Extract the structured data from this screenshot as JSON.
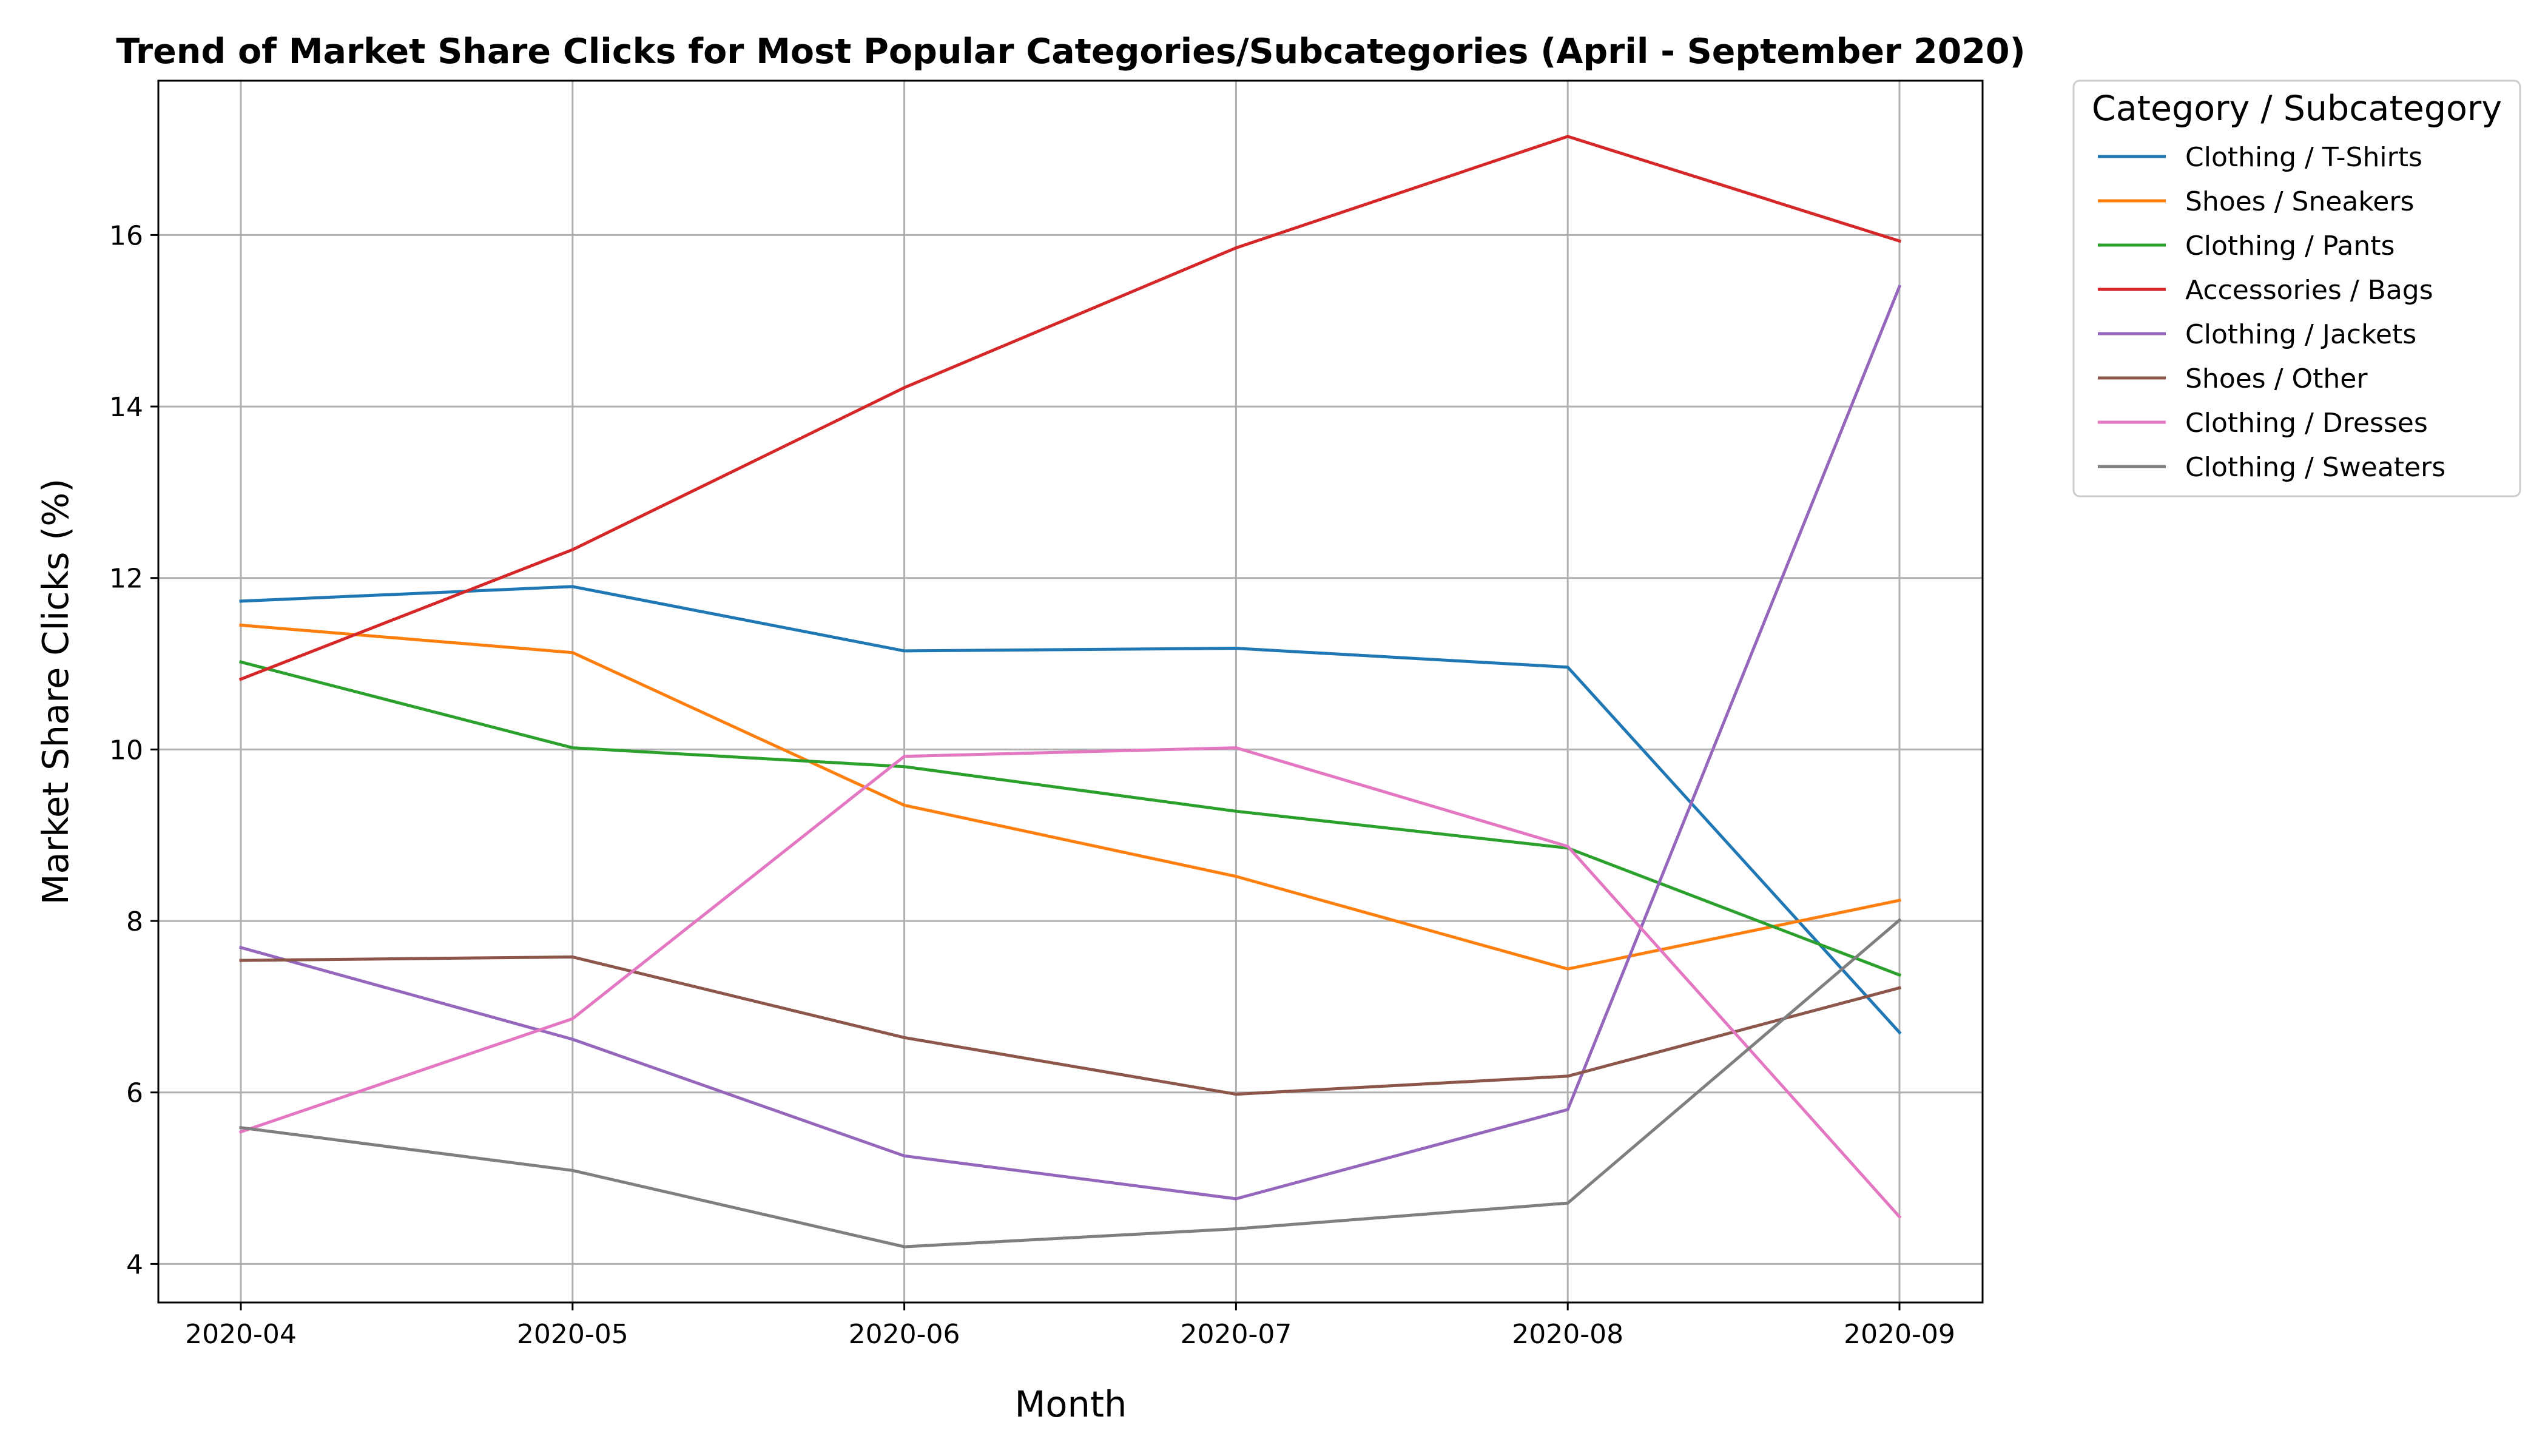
{
  "chart_data": {
    "type": "line",
    "title": "Trend of Market Share Clicks for Most Popular Categories/Subcategories (April - September 2020)",
    "xlabel": "Month",
    "ylabel": "Market Share Clicks (%)",
    "categories": [
      "2020-04",
      "2020-05",
      "2020-06",
      "2020-07",
      "2020-08",
      "2020-09"
    ],
    "yticks": [
      "4",
      "6",
      "8",
      "10",
      "12",
      "14",
      "16"
    ],
    "ylim": [
      3.55,
      17.8
    ],
    "grid": true,
    "legend": {
      "title": "Category / Subcategory",
      "placement": "outside-top-right"
    },
    "series": [
      {
        "name": "Clothing / T-Shirts",
        "color": "#1f77b4",
        "values": [
          11.73,
          11.9,
          11.15,
          11.18,
          10.96,
          6.7
        ]
      },
      {
        "name": "Shoes / Sneakers",
        "color": "#ff7f0e",
        "values": [
          11.45,
          11.13,
          9.35,
          8.52,
          7.44,
          8.24
        ]
      },
      {
        "name": "Clothing / Pants",
        "color": "#2ca02c",
        "values": [
          11.02,
          10.02,
          9.8,
          9.28,
          8.85,
          7.37
        ]
      },
      {
        "name": "Accessories / Bags",
        "color": "#d62728",
        "values": [
          10.82,
          12.33,
          14.22,
          15.85,
          17.15,
          15.93
        ]
      },
      {
        "name": "Clothing / Jackets",
        "color": "#9467bd",
        "values": [
          7.69,
          6.62,
          5.26,
          4.76,
          5.8,
          15.4
        ]
      },
      {
        "name": "Shoes / Other",
        "color": "#8c564b",
        "values": [
          7.54,
          7.58,
          6.64,
          5.98,
          6.19,
          7.22
        ]
      },
      {
        "name": "Clothing / Dresses",
        "color": "#e377c2",
        "values": [
          5.54,
          6.86,
          9.92,
          10.02,
          8.87,
          4.55
        ]
      },
      {
        "name": "Clothing / Sweaters",
        "color": "#7f7f7f",
        "values": [
          5.59,
          5.09,
          4.2,
          4.41,
          4.71,
          8.01
        ]
      }
    ]
  }
}
